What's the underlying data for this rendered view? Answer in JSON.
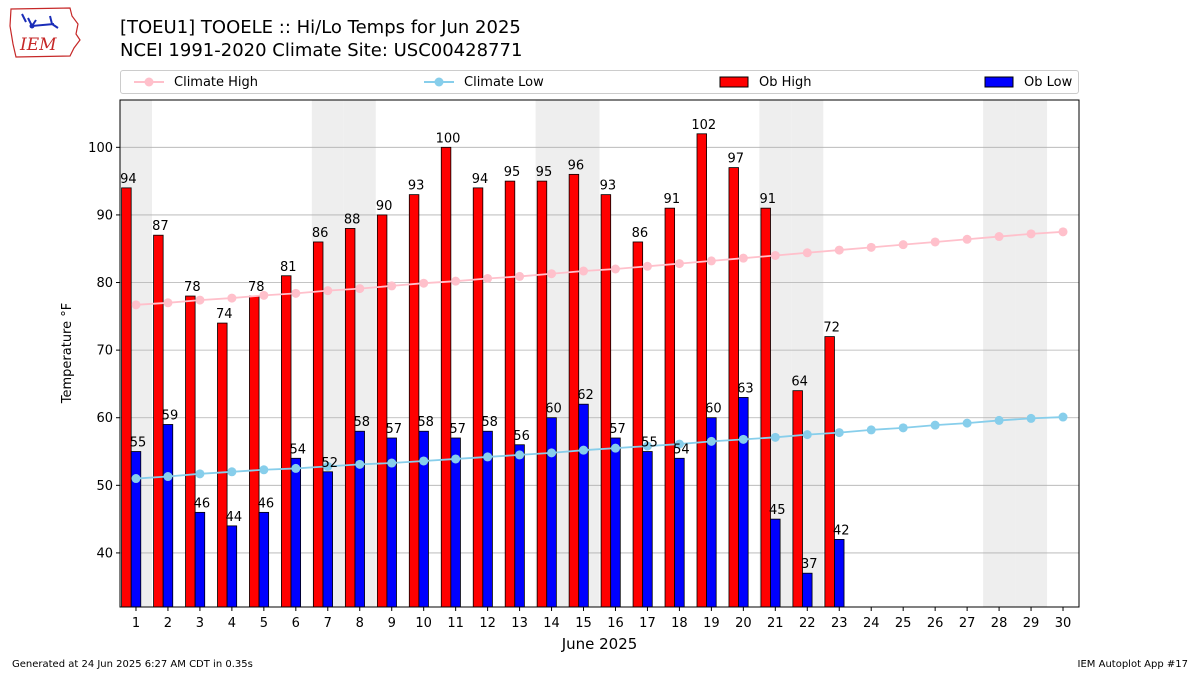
{
  "title_line1": "[TOEU1] TOOELE :: Hi/Lo Temps for Jun 2025",
  "title_line2": "NCEI 1991-2020 Climate Site: USC00428771",
  "logo_text": "IEM",
  "footer_left": "Generated at 24 Jun 2025 6:27 AM CDT in 0.35s",
  "footer_right": "IEM Autoplot App #17",
  "legend": {
    "climate_high": "Climate High",
    "climate_low": "Climate Low",
    "ob_high": "Ob High",
    "ob_low": "Ob Low"
  },
  "colors": {
    "ob_high": "#ff0000",
    "ob_low": "#0000ff",
    "climate_high": "#ffc0cb",
    "climate_low": "#87ceeb",
    "weekend_shade": "#eeeeee",
    "grid": "#b0b0b0"
  },
  "chart_data": {
    "type": "bar",
    "xlabel": "June 2025",
    "ylabel": "Temperature °F",
    "xlim": [
      0.5,
      30.5
    ],
    "ylim": [
      32,
      107
    ],
    "yticks": [
      40,
      50,
      60,
      70,
      80,
      90,
      100
    ],
    "grid": "horizontal",
    "legend_position": "top",
    "shaded_days": [
      1,
      7,
      8,
      14,
      15,
      21,
      22,
      28,
      29
    ],
    "days": [
      1,
      2,
      3,
      4,
      5,
      6,
      7,
      8,
      9,
      10,
      11,
      12,
      13,
      14,
      15,
      16,
      17,
      18,
      19,
      20,
      21,
      22,
      23,
      24,
      25,
      26,
      27,
      28,
      29,
      30
    ],
    "ob_high": [
      94,
      87,
      78,
      74,
      78,
      81,
      86,
      88,
      90,
      93,
      100,
      94,
      95,
      95,
      96,
      93,
      86,
      91,
      102,
      97,
      91,
      64,
      72
    ],
    "ob_low": [
      55,
      59,
      46,
      44,
      46,
      54,
      52,
      58,
      57,
      58,
      57,
      58,
      56,
      60,
      62,
      57,
      55,
      54,
      60,
      63,
      45,
      37,
      42
    ],
    "climate_high": [
      76.7,
      77.0,
      77.4,
      77.7,
      78.1,
      78.4,
      78.8,
      79.1,
      79.5,
      79.9,
      80.2,
      80.6,
      80.9,
      81.3,
      81.7,
      82.0,
      82.4,
      82.8,
      83.2,
      83.6,
      84.0,
      84.4,
      84.8,
      85.2,
      85.6,
      86.0,
      86.4,
      86.8,
      87.2,
      87.5
    ],
    "climate_low": [
      51.0,
      51.3,
      51.7,
      52.0,
      52.3,
      52.5,
      52.8,
      53.1,
      53.3,
      53.6,
      53.9,
      54.2,
      54.5,
      54.8,
      55.2,
      55.5,
      55.8,
      56.1,
      56.5,
      56.8,
      57.1,
      57.5,
      57.8,
      58.2,
      58.5,
      58.9,
      59.2,
      59.6,
      59.9,
      60.1
    ]
  }
}
